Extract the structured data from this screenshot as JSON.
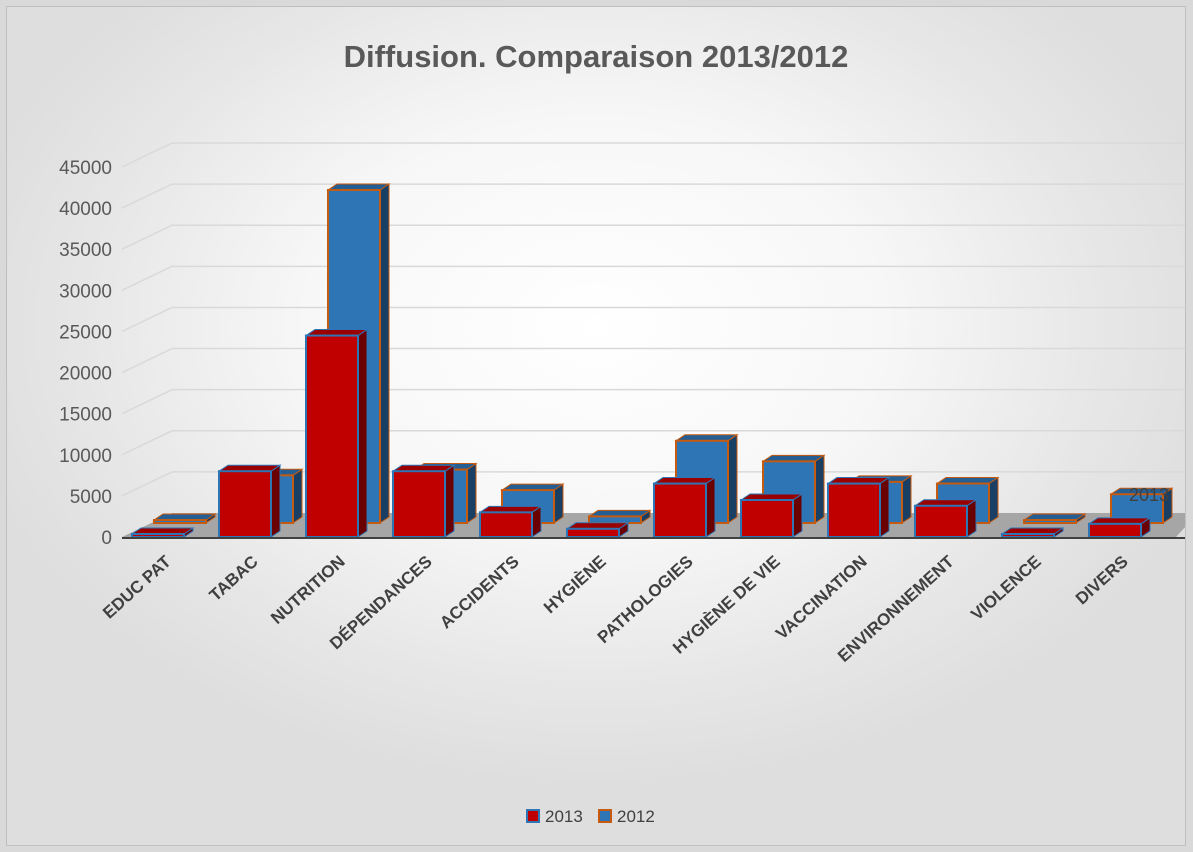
{
  "chart_data": {
    "type": "bar",
    "title": "Diffusion. Comparaison 2013/2012",
    "xlabel": "",
    "ylabel": "",
    "ylim": [
      0,
      45000
    ],
    "yticks": [
      "0",
      "5000",
      "10000",
      "15000",
      "20000",
      "25000",
      "30000",
      "35000",
      "40000",
      "45000"
    ],
    "categories": [
      "EDUC PAT",
      "TABAC",
      "NUTRITION",
      "DÉPENDANCES",
      "ACCIDENTS",
      "HYGIÈNE",
      "PATHOLOGIES",
      "HYGIÈNE DE VIE",
      "VACCINATION",
      "ENVIRONNEMENT",
      "VIOLENCE",
      "DIVERS"
    ],
    "series": [
      {
        "name": "2013",
        "values": [
          300,
          8000,
          24500,
          8000,
          3000,
          1000,
          6500,
          4500,
          6500,
          3800,
          200,
          1600
        ],
        "color": "#c00000"
      },
      {
        "name": "2012",
        "values": [
          200,
          5800,
          40500,
          6500,
          4000,
          800,
          10000,
          7500,
          5000,
          4800,
          300,
          3500
        ],
        "color": "#2e75b6"
      }
    ],
    "depth_label": "2013",
    "legend": {
      "position": "bottom",
      "entries": [
        "2013",
        "2012"
      ]
    },
    "grid": true,
    "view": "3d-columns"
  }
}
